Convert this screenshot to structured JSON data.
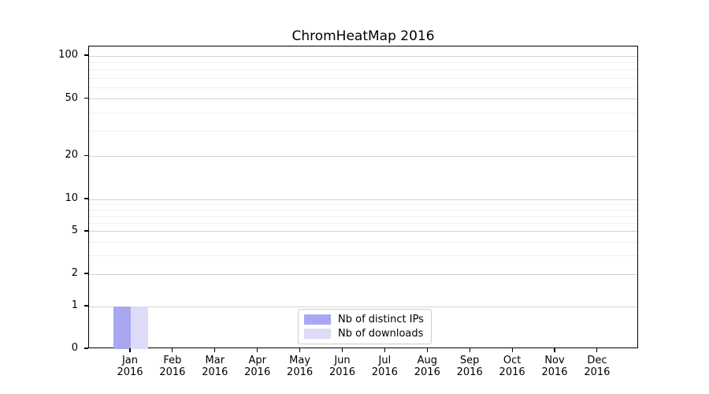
{
  "chart_data": {
    "type": "bar",
    "title": "ChromHeatMap 2016",
    "categories": [
      {
        "month": "Jan",
        "year": "2016"
      },
      {
        "month": "Feb",
        "year": "2016"
      },
      {
        "month": "Mar",
        "year": "2016"
      },
      {
        "month": "Apr",
        "year": "2016"
      },
      {
        "month": "May",
        "year": "2016"
      },
      {
        "month": "Jun",
        "year": "2016"
      },
      {
        "month": "Jul",
        "year": "2016"
      },
      {
        "month": "Aug",
        "year": "2016"
      },
      {
        "month": "Sep",
        "year": "2016"
      },
      {
        "month": "Oct",
        "year": "2016"
      },
      {
        "month": "Nov",
        "year": "2016"
      },
      {
        "month": "Dec",
        "year": "2016"
      }
    ],
    "series": [
      {
        "name": "Nb of distinct IPs",
        "color": "#a8a8f2",
        "values": [
          1,
          0,
          0,
          0,
          0,
          0,
          0,
          0,
          0,
          0,
          0,
          0
        ]
      },
      {
        "name": "Nb of downloads",
        "color": "#dcdcf9",
        "values": [
          1,
          0,
          0,
          0,
          0,
          0,
          0,
          0,
          0,
          0,
          0,
          0
        ]
      }
    ],
    "xlabel": "",
    "ylabel": "",
    "yscale": "symlog",
    "ylim": [
      0,
      116
    ],
    "yticks": [
      0,
      1,
      2,
      5,
      10,
      20,
      50,
      100
    ],
    "minor_yticks": [
      3,
      4,
      6,
      7,
      8,
      9,
      30,
      40,
      60,
      70,
      80,
      90
    ],
    "grid": "horizontal",
    "legend_position": "lower-center-inside",
    "colors": {
      "major_grid": "#d2d2d2",
      "minor_grid": "#efefef",
      "axis": "#000000",
      "legend_border": "#cccccc"
    }
  }
}
